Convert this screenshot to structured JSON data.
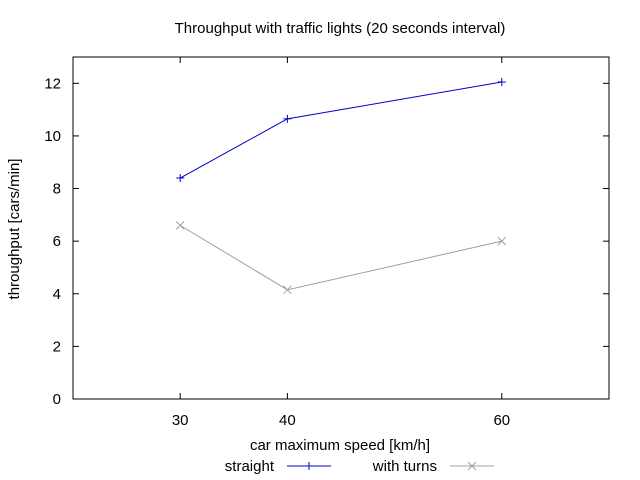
{
  "chart_data": {
    "type": "line",
    "title": "Throughput with traffic lights (20 seconds interval)",
    "xlabel": "car maximum speed [km/h]",
    "ylabel": "throughput [cars/min]",
    "x": [
      30,
      40,
      60
    ],
    "xlim": [
      20,
      70
    ],
    "ylim": [
      0,
      13
    ],
    "xticks": [
      30,
      40,
      60
    ],
    "yticks": [
      0,
      2,
      4,
      6,
      8,
      10,
      12
    ],
    "grid": false,
    "legend_position": "bottom-center",
    "series": [
      {
        "name": "straight",
        "values": [
          8.4,
          10.65,
          12.05
        ],
        "color": "#0000cc",
        "marker": "plus"
      },
      {
        "name": "with turns",
        "values": [
          6.6,
          4.15,
          6.0
        ],
        "color": "#a0a0a0",
        "marker": "cross"
      }
    ]
  }
}
